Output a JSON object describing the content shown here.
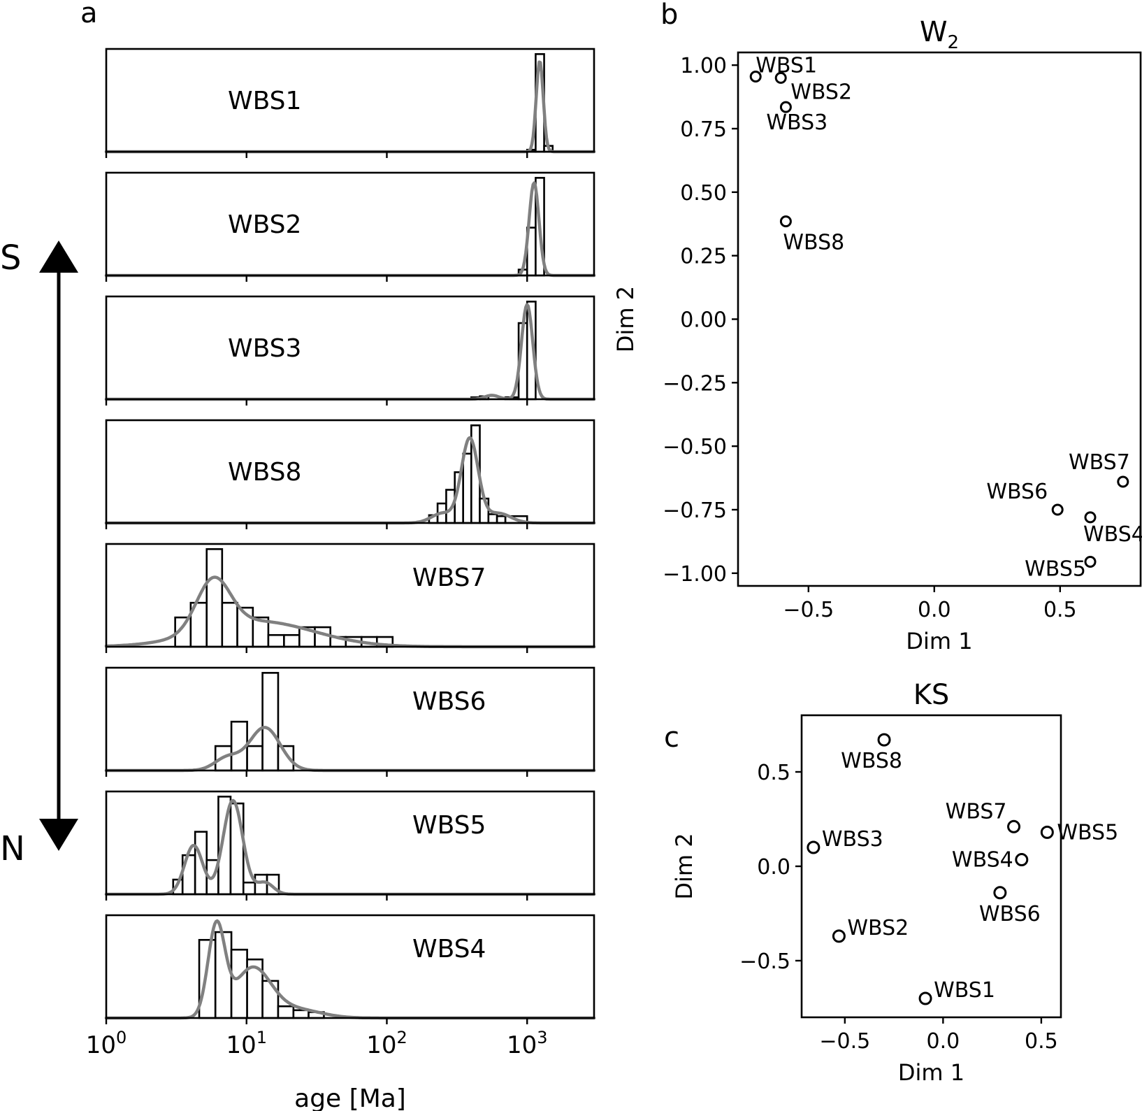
{
  "panels": {
    "a": "a",
    "b": "b",
    "c": "c"
  },
  "direction": {
    "top": "S",
    "bottom": "N"
  },
  "chart_data": [
    {
      "panel": "a",
      "type": "bar",
      "description": "stacked histograms with KDE (age, log scale)",
      "xlabel": "age [Ma]",
      "xscale": "log",
      "xlim": [
        1,
        3000
      ],
      "xticks": [
        {
          "value": 1,
          "base": "10",
          "exp": "0"
        },
        {
          "value": 10,
          "base": "10",
          "exp": "1"
        },
        {
          "value": 100,
          "base": "10",
          "exp": "2"
        },
        {
          "value": 1000,
          "base": "10",
          "exp": "3"
        }
      ],
      "samples": [
        {
          "name": "WBS1",
          "label_pos": "left",
          "bins": [
            [
              1000,
              1150,
              0.02
            ],
            [
              1150,
              1322,
              1.0
            ],
            [
              1322,
              1520,
              0.06
            ]
          ],
          "peaks": [
            [
              1230,
              0.93,
              0.025
            ]
          ]
        },
        {
          "name": "WBS2",
          "label_pos": "left",
          "bins": [
            [
              870,
              1000,
              0.06
            ],
            [
              1000,
              1150,
              0.49
            ],
            [
              1150,
              1322,
              1.0
            ]
          ],
          "peaks": [
            [
              1120,
              0.95,
              0.035
            ]
          ]
        },
        {
          "name": "WBS3",
          "label_pos": "left",
          "bins": [
            [
              400,
              460,
              0.02
            ],
            [
              460,
              530,
              0.03
            ],
            [
              700,
              870,
              0.02
            ],
            [
              870,
              1000,
              0.78
            ],
            [
              1000,
              1150,
              1.0
            ]
          ],
          "peaks": [
            [
              1000,
              0.97,
              0.04
            ],
            [
              560,
              0.04,
              0.05
            ]
          ]
        },
        {
          "name": "WBS8",
          "label_pos": "left",
          "bins": [
            [
              200,
              230,
              0.08
            ],
            [
              230,
              265,
              0.2
            ],
            [
              265,
              305,
              0.34
            ],
            [
              305,
              350,
              0.52
            ],
            [
              350,
              400,
              0.71
            ],
            [
              400,
              460,
              1.0
            ],
            [
              460,
              530,
              0.25
            ],
            [
              530,
              610,
              0.09
            ],
            [
              610,
              700,
              0.07
            ],
            [
              700,
              1000,
              0.07
            ]
          ],
          "peaks": [
            [
              390,
              0.86,
              0.06
            ],
            [
              250,
              0.1,
              0.08
            ],
            [
              620,
              0.1,
              0.09
            ]
          ]
        },
        {
          "name": "WBS7",
          "label_pos": "right",
          "bins": [
            [
              3.1,
              4.0,
              0.3
            ],
            [
              4.0,
              5.2,
              0.45
            ],
            [
              5.2,
              6.7,
              1.0
            ],
            [
              6.7,
              8.6,
              0.45
            ],
            [
              8.6,
              11.1,
              0.4
            ],
            [
              11.1,
              14.3,
              0.3
            ],
            [
              14.3,
              18.5,
              0.12
            ],
            [
              18.5,
              23.8,
              0.12
            ],
            [
              23.8,
              30.7,
              0.2
            ],
            [
              30.7,
              39.6,
              0.2
            ],
            [
              39.6,
              51,
              0.1
            ],
            [
              51,
              66,
              0.1
            ],
            [
              66,
              85,
              0.1
            ],
            [
              85,
              110,
              0.1
            ]
          ],
          "peaks": [
            [
              5.8,
              0.52,
              0.12
            ],
            [
              12,
              0.26,
              0.4
            ]
          ]
        },
        {
          "name": "WBS6",
          "label_pos": "right",
          "bins": [
            [
              6,
              7.8,
              0.25
            ],
            [
              7.8,
              10.1,
              0.5
            ],
            [
              10.1,
              13.0,
              0.25
            ],
            [
              13.0,
              16.8,
              1.0
            ],
            [
              16.8,
              21.6,
              0.25
            ]
          ],
          "peaks": [
            [
              13.5,
              0.44,
              0.11
            ],
            [
              7.3,
              0.13,
              0.09
            ]
          ]
        },
        {
          "name": "WBS5",
          "label_pos": "right",
          "bins": [
            [
              3.0,
              3.5,
              0.15
            ],
            [
              3.5,
              4.3,
              0.4
            ],
            [
              4.3,
              5.2,
              0.64
            ],
            [
              5.2,
              6.3,
              0.35
            ],
            [
              6.3,
              7.7,
              1.0
            ],
            [
              7.7,
              9.5,
              0.93
            ],
            [
              9.5,
              11.5,
              0.12
            ],
            [
              11.5,
              14.0,
              0.2
            ],
            [
              14.0,
              17.0,
              0.2
            ]
          ],
          "peaks": [
            [
              4.2,
              0.5,
              0.065
            ],
            [
              8.0,
              0.96,
              0.07
            ],
            [
              13.5,
              0.12,
              0.06
            ]
          ]
        },
        {
          "name": "WBS4",
          "label_pos": "right",
          "bins": [
            [
              4.6,
              6,
              0.8
            ],
            [
              6,
              7.8,
              0.88
            ],
            [
              7.8,
              10.1,
              0.7
            ],
            [
              10.1,
              13.0,
              0.6
            ],
            [
              13.0,
              16.8,
              0.38
            ],
            [
              16.8,
              21.6,
              0.12
            ],
            [
              21.6,
              27.7,
              0.08
            ],
            [
              27.7,
              35.6,
              0.06
            ]
          ],
          "peaks": [
            [
              6.1,
              0.92,
              0.06
            ],
            [
              11,
              0.5,
              0.13
            ],
            [
              22,
              0.09,
              0.18
            ]
          ]
        }
      ]
    },
    {
      "panel": "b",
      "type": "scatter",
      "title_base": "W",
      "title_sub": "2",
      "xlabel": "Dim 1",
      "ylabel": "Dim 2",
      "xlim": [
        -0.78,
        0.82
      ],
      "ylim": [
        -1.05,
        1.05
      ],
      "xticks": [
        {
          "value": -0.5,
          "label": "−0.5"
        },
        {
          "value": 0.0,
          "label": "0.0"
        },
        {
          "value": 0.5,
          "label": "0.5"
        }
      ],
      "yticks": [
        {
          "value": 1.0,
          "label": "1.00"
        },
        {
          "value": 0.75,
          "label": "0.75"
        },
        {
          "value": 0.5,
          "label": "0.50"
        },
        {
          "value": 0.25,
          "label": "0.25"
        },
        {
          "value": 0.0,
          "label": "0.00"
        },
        {
          "value": -0.25,
          "label": "−0.25"
        },
        {
          "value": -0.5,
          "label": "−0.50"
        },
        {
          "value": -0.75,
          "label": "−0.75"
        },
        {
          "value": -1.0,
          "label": "−1.00"
        }
      ],
      "points": [
        {
          "name": "WBS1",
          "x": -0.71,
          "y": 0.955,
          "anchor": "start",
          "dx": 0,
          "dy": -6
        },
        {
          "name": "WBS2",
          "x": -0.61,
          "y": 0.95,
          "anchor": "start",
          "dx": 14,
          "dy": 30
        },
        {
          "name": "WBS3",
          "x": -0.59,
          "y": 0.835,
          "anchor": "start",
          "dx": -28,
          "dy": 32
        },
        {
          "name": "WBS8",
          "x": -0.59,
          "y": 0.385,
          "anchor": "start",
          "dx": -4,
          "dy": 40
        },
        {
          "name": "WBS7",
          "x": 0.75,
          "y": -0.64,
          "anchor": "end",
          "dx": 10,
          "dy": -18
        },
        {
          "name": "WBS6",
          "x": 0.49,
          "y": -0.75,
          "anchor": "end",
          "dx": -14,
          "dy": -16
        },
        {
          "name": "WBS4",
          "x": 0.62,
          "y": -0.78,
          "anchor": "start",
          "dx": -10,
          "dy": 34
        },
        {
          "name": "WBS5",
          "x": 0.62,
          "y": -0.955,
          "anchor": "end",
          "dx": -6,
          "dy": 20
        }
      ]
    },
    {
      "panel": "c",
      "type": "scatter",
      "title": "KS",
      "xlabel": "Dim 1",
      "ylabel": "Dim 2",
      "xlim": [
        -0.72,
        0.6
      ],
      "ylim": [
        -0.8,
        0.8
      ],
      "xticks": [
        {
          "value": -0.5,
          "label": "−0.5"
        },
        {
          "value": 0.0,
          "label": "0.0"
        },
        {
          "value": 0.5,
          "label": "0.5"
        }
      ],
      "yticks": [
        {
          "value": 0.5,
          "label": "0.5"
        },
        {
          "value": 0.0,
          "label": "0.0"
        },
        {
          "value": -0.5,
          "label": "−0.5"
        }
      ],
      "points": [
        {
          "name": "WBS8",
          "x": -0.3,
          "y": 0.67,
          "anchor": "end",
          "dx": 26,
          "dy": 40
        },
        {
          "name": "WBS7",
          "x": 0.36,
          "y": 0.21,
          "anchor": "end",
          "dx": -10,
          "dy": -12
        },
        {
          "name": "WBS5",
          "x": 0.53,
          "y": 0.18,
          "anchor": "start",
          "dx": 14,
          "dy": 10
        },
        {
          "name": "WBS3",
          "x": -0.66,
          "y": 0.1,
          "anchor": "start",
          "dx": 12,
          "dy": -2
        },
        {
          "name": "WBS4",
          "x": 0.4,
          "y": 0.035,
          "anchor": "end",
          "dx": -12,
          "dy": 10
        },
        {
          "name": "WBS6",
          "x": 0.29,
          "y": -0.14,
          "anchor": "start",
          "dx": -30,
          "dy": 40
        },
        {
          "name": "WBS2",
          "x": -0.53,
          "y": -0.37,
          "anchor": "start",
          "dx": 12,
          "dy": -2
        },
        {
          "name": "WBS1",
          "x": -0.09,
          "y": -0.7,
          "anchor": "start",
          "dx": 12,
          "dy": -2
        }
      ]
    }
  ]
}
